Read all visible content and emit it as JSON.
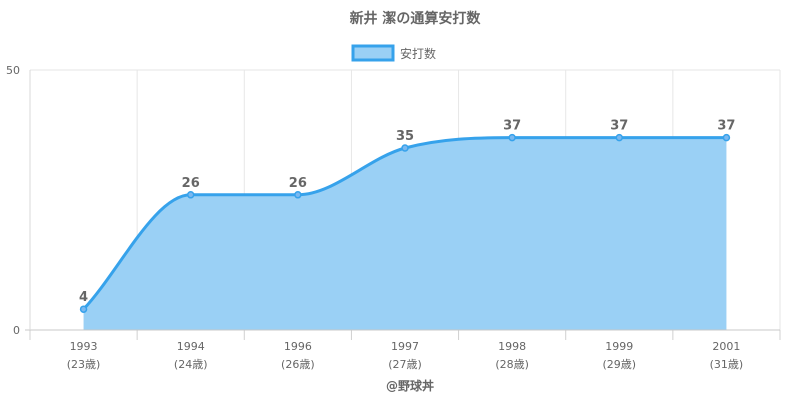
{
  "chart_data": {
    "type": "area",
    "title": "新井 潔の通算安打数",
    "categories": [
      "1993",
      "1994",
      "1996",
      "1997",
      "1998",
      "1999",
      "2001"
    ],
    "category_sublabels": [
      "(23歳)",
      "(24歳)",
      "(26歳)",
      "(27歳)",
      "(28歳)",
      "(29歳)",
      "(31歳)"
    ],
    "series": [
      {
        "name": "安打数",
        "values": [
          4,
          26,
          26,
          35,
          37,
          37,
          37
        ]
      }
    ],
    "ylim": [
      0,
      50
    ],
    "yticks": [
      "0",
      "50"
    ],
    "grid": true,
    "legend": "top-center",
    "line_color": "#36a2eb",
    "fill_color": "#9ad0f5"
  },
  "credit": "@野球丼"
}
